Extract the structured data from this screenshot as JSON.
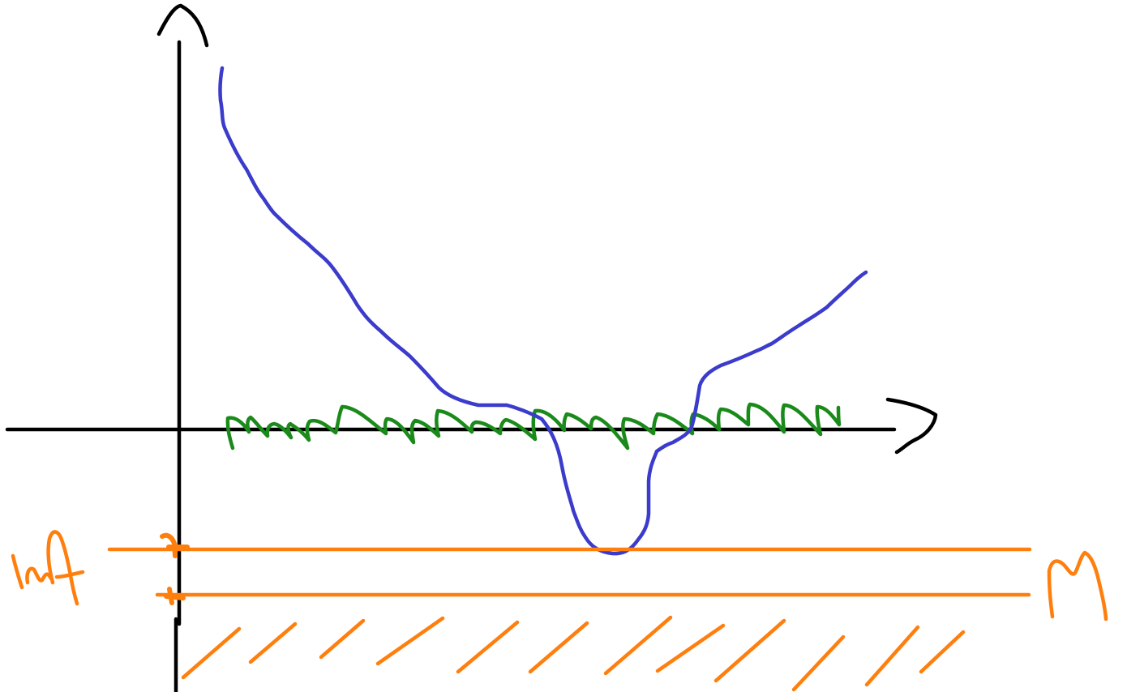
{
  "colors": {
    "axes": "#000000",
    "blue_curve": "#3b3bcc",
    "green_curve": "#1a8a1a",
    "orange": "#ff7f0e"
  },
  "hatch_strokes": 14
}
